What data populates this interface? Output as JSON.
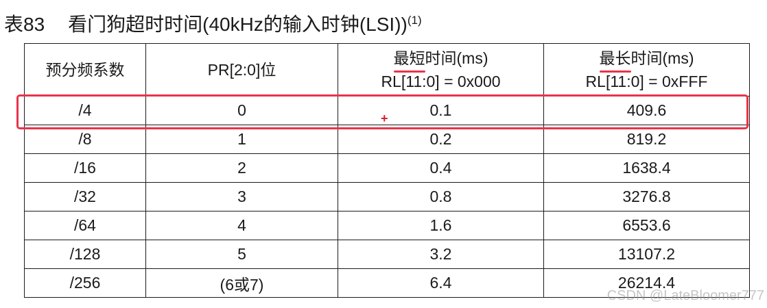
{
  "caption": {
    "label": "表83",
    "title": "看门狗超时时间(40kHz的输入时钟(LSI))",
    "footnote": "(1)"
  },
  "table": {
    "headers": [
      {
        "line1": "预分频系数"
      },
      {
        "line1": "PR[2:0]位"
      },
      {
        "line1_marked": "最短",
        "line1_rest": "时间(ms)",
        "line2": "RL[11:0] = 0x000"
      },
      {
        "line1_marked": "最长",
        "line1_rest": "时间(ms)",
        "line2": "RL[11:0] = 0xFFF"
      }
    ],
    "rows": [
      [
        "/4",
        "0",
        "0.1",
        "409.6"
      ],
      [
        "/8",
        "1",
        "0.2",
        "819.2"
      ],
      [
        "/16",
        "2",
        "0.4",
        "1638.4"
      ],
      [
        "/32",
        "3",
        "0.8",
        "3276.8"
      ],
      [
        "/64",
        "4",
        "1.6",
        "6553.6"
      ],
      [
        "/128",
        "5",
        "3.2",
        "13107.2"
      ],
      [
        "/256",
        "(6或7)",
        "6.4",
        "26214.4"
      ]
    ]
  },
  "annotations": {
    "highlight_color": "#e8334a",
    "highlighted_row": 0,
    "cursor_glyph": "+"
  },
  "watermark": "CSDN @LateBloomer777"
}
